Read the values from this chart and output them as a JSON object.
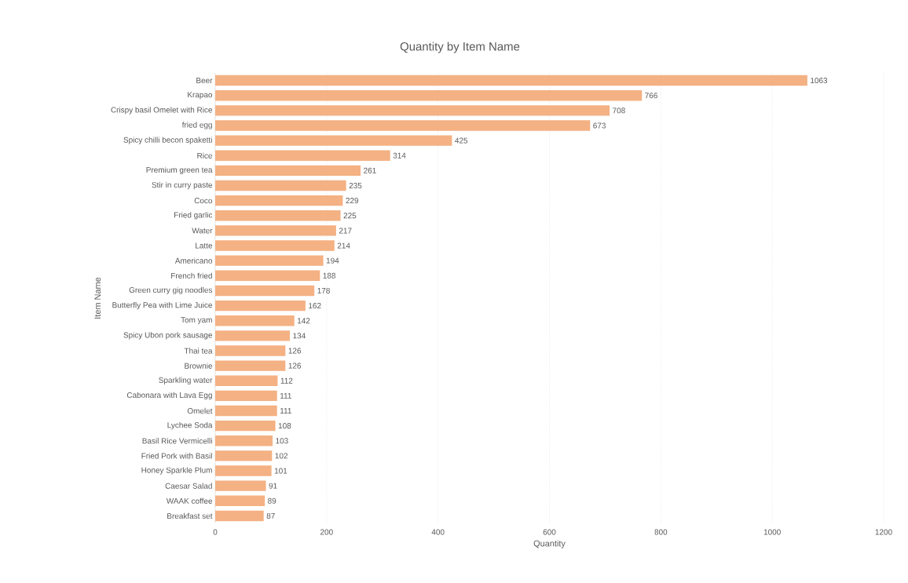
{
  "chart_data": {
    "type": "bar",
    "orientation": "horizontal",
    "title": "Quantity by Item Name",
    "xlabel": "Quantity",
    "ylabel": "Item Name",
    "categories": [
      "Beer",
      "Krapao",
      "Crispy basil Omelet with Rice",
      "fried egg",
      "Spicy chilli becon spaketti",
      "Rice",
      "Premium green tea",
      "Stir in curry paste",
      "Coco",
      "Fried garlic",
      "Water",
      "Latte",
      "Americano",
      "French fried",
      "Green curry gig noodles",
      "Butterfly Pea with Lime Juice",
      "Tom yam",
      "Spicy Ubon pork sausage",
      "Thai tea",
      "Brownie",
      "Sparkling water",
      "Cabonara with Lava Egg",
      "Omelet",
      "Lychee Soda",
      "Basil Rice Vermicelli",
      "Fried Pork with Basil",
      "Honey Sparkle Plum",
      "Caesar Salad",
      "WAAK coffee",
      "Breakfast set"
    ],
    "values": [
      1063,
      766,
      708,
      673,
      425,
      314,
      261,
      235,
      229,
      225,
      217,
      214,
      194,
      188,
      178,
      162,
      142,
      134,
      126,
      126,
      112,
      111,
      111,
      108,
      103,
      102,
      101,
      91,
      89,
      87
    ],
    "color": "#f4b183",
    "data_labels": true,
    "xlim": [
      0,
      1200
    ],
    "xticks": [
      0,
      200,
      400,
      600,
      800,
      1000,
      1200
    ],
    "grid": "x"
  }
}
